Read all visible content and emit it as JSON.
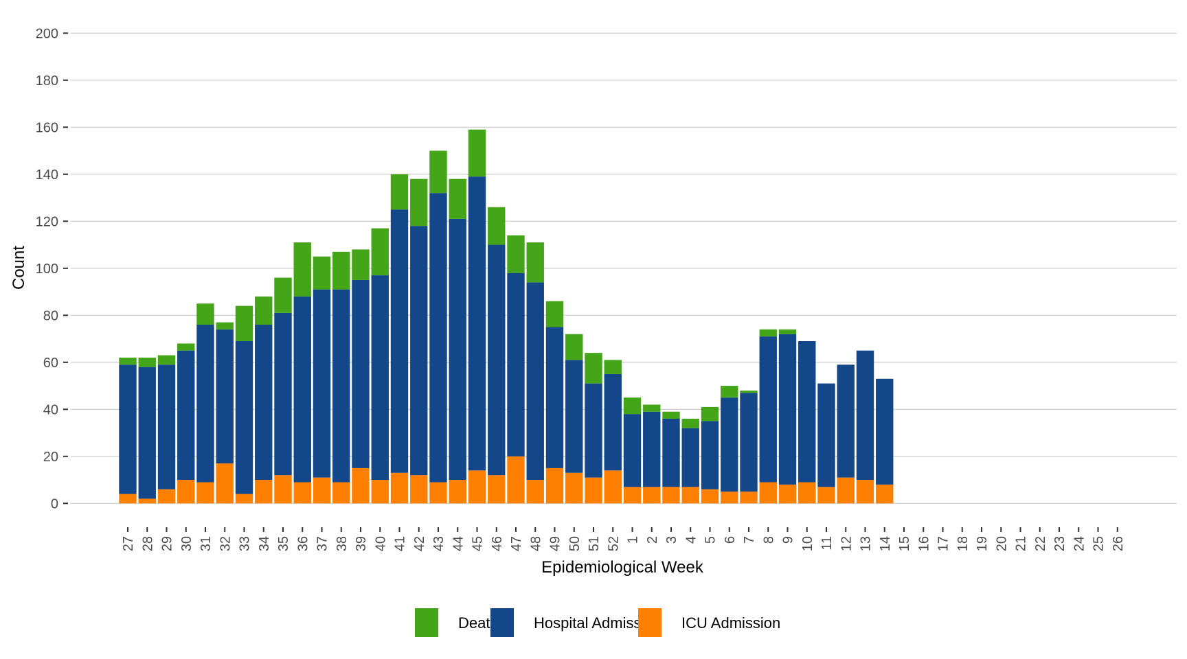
{
  "chart_data": {
    "type": "bar",
    "stacked": true,
    "title": "",
    "xlabel": "Epidemiological Week",
    "ylabel": "Count",
    "ylim": [
      0,
      200
    ],
    "yticks": [
      0,
      20,
      40,
      60,
      80,
      100,
      120,
      140,
      160,
      180,
      200
    ],
    "grid": true,
    "legend_position": "bottom",
    "categories": [
      "27",
      "28",
      "29",
      "30",
      "31",
      "32",
      "33",
      "34",
      "35",
      "36",
      "37",
      "38",
      "39",
      "40",
      "41",
      "42",
      "43",
      "44",
      "45",
      "46",
      "47",
      "48",
      "49",
      "50",
      "51",
      "52",
      "1",
      "2",
      "3",
      "4",
      "5",
      "6",
      "7",
      "8",
      "9",
      "10",
      "11",
      "12",
      "13",
      "14",
      "15",
      "16",
      "17",
      "18",
      "19",
      "20",
      "21",
      "22",
      "23",
      "24",
      "25",
      "26"
    ],
    "series": [
      {
        "name": "ICU Admission",
        "color": "#ff7f00",
        "values": [
          4,
          2,
          6,
          10,
          9,
          17,
          4,
          10,
          12,
          9,
          11,
          9,
          15,
          10,
          13,
          12,
          9,
          10,
          14,
          12,
          20,
          10,
          15,
          13,
          11,
          14,
          7,
          7,
          7,
          7,
          6,
          5,
          5,
          9,
          8,
          9,
          7,
          11,
          10,
          8,
          0,
          0,
          0,
          0,
          0,
          0,
          0,
          0,
          0,
          0,
          0,
          0
        ]
      },
      {
        "name": "Hospital Admission",
        "color": "#14478a",
        "values": [
          55,
          56,
          53,
          55,
          67,
          57,
          65,
          66,
          69,
          79,
          80,
          82,
          80,
          87,
          112,
          106,
          123,
          111,
          125,
          98,
          78,
          84,
          60,
          48,
          40,
          41,
          31,
          32,
          29,
          25,
          29,
          40,
          42,
          62,
          64,
          60,
          44,
          48,
          55,
          45,
          0,
          0,
          0,
          0,
          0,
          0,
          0,
          0,
          0,
          0,
          0,
          0
        ]
      },
      {
        "name": "Death",
        "color": "#45a519",
        "values": [
          3,
          4,
          4,
          3,
          9,
          3,
          15,
          12,
          15,
          23,
          14,
          16,
          13,
          20,
          15,
          20,
          18,
          17,
          20,
          16,
          16,
          17,
          11,
          11,
          13,
          6,
          7,
          3,
          3,
          4,
          6,
          5,
          1,
          3,
          2,
          0,
          0,
          0,
          0,
          0,
          0,
          0,
          0,
          0,
          0,
          0,
          0,
          0,
          0,
          0,
          0,
          0
        ]
      }
    ],
    "legend": [
      {
        "name": "Death",
        "color": "#45a519"
      },
      {
        "name": "Hospital Admission",
        "color": "#14478a"
      },
      {
        "name": "ICU Admission",
        "color": "#ff7f00"
      }
    ]
  }
}
